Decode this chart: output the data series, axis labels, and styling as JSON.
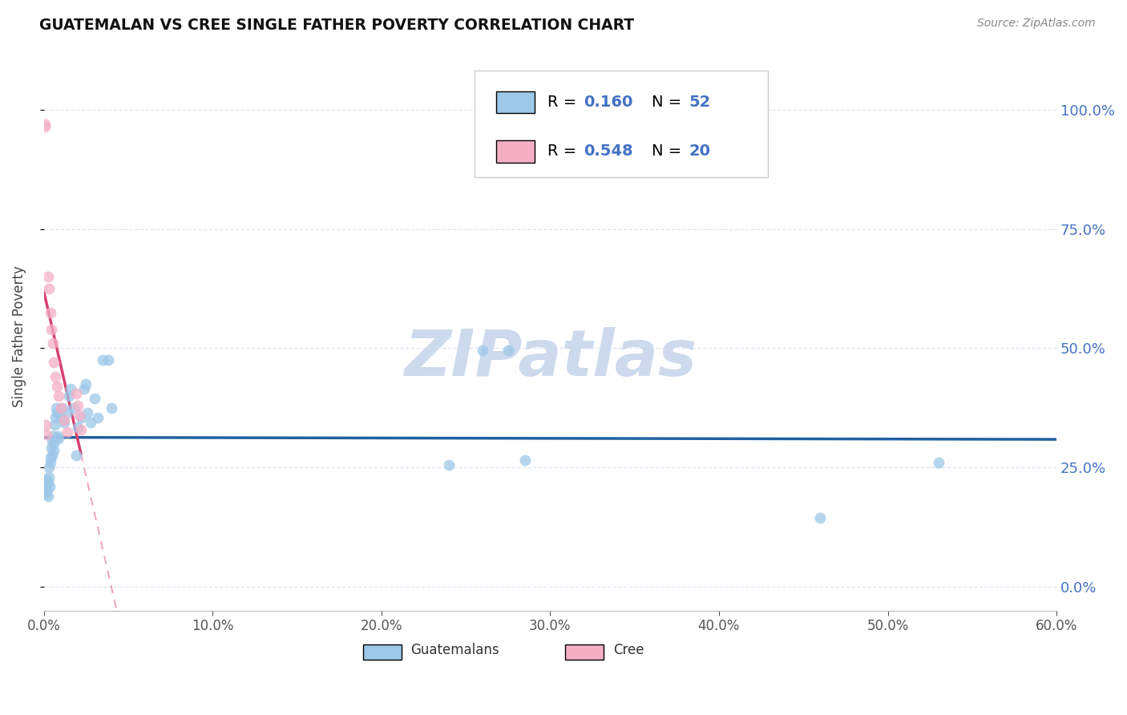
{
  "title": "GUATEMALAN VS CREE SINGLE FATHER POVERTY CORRELATION CHART",
  "source": "Source: ZipAtlas.com",
  "ylabel": "Single Father Poverty",
  "legend_label1": "Guatemalans",
  "legend_label2": "Cree",
  "r1": 0.16,
  "n1": 52,
  "r2": 0.548,
  "n2": 20,
  "blue_scatter": "#9dc8e8",
  "pink_scatter": "#f4afc5",
  "line_blue": "#2060a0",
  "line_pink": "#d84070",
  "text_blue": "#4472c4",
  "title_color": "#111111",
  "source_color": "#888888",
  "grid_color": "#dce5f0",
  "watermark_color": "#cdd9ed",
  "xlim": [
    0.0,
    60.0
  ],
  "ylim": [
    -5.0,
    110.0
  ],
  "xticks": [
    0.0,
    10.0,
    20.0,
    30.0,
    40.0,
    50.0,
    60.0
  ],
  "yticks": [
    0.0,
    25.0,
    50.0,
    75.0,
    100.0
  ],
  "guatemalan_x": [
    0.05,
    0.08,
    0.1,
    0.12,
    0.15,
    0.18,
    0.2,
    0.22,
    0.25,
    0.28,
    0.3,
    0.32,
    0.35,
    0.38,
    0.4,
    0.45,
    0.48,
    0.5,
    0.55,
    0.58,
    0.6,
    0.65,
    0.7,
    0.75,
    0.8,
    0.85,
    0.9,
    1.0,
    1.1,
    1.2,
    1.4,
    1.5,
    1.6,
    1.8,
    1.9,
    2.0,
    2.2,
    2.4,
    2.5,
    2.6,
    2.8,
    3.0,
    3.2,
    3.5,
    3.8,
    4.0,
    24.0,
    26.0,
    27.5,
    28.5,
    46.0,
    53.0
  ],
  "guatemalan_y": [
    20.0,
    22.0,
    19.5,
    21.0,
    20.0,
    21.5,
    22.5,
    20.5,
    19.0,
    22.0,
    25.0,
    23.0,
    21.0,
    27.0,
    26.0,
    29.0,
    27.5,
    30.5,
    31.5,
    30.0,
    28.5,
    34.0,
    35.5,
    37.5,
    36.5,
    31.5,
    31.0,
    35.5,
    37.5,
    34.5,
    36.5,
    40.0,
    41.5,
    37.5,
    27.5,
    33.5,
    35.5,
    41.5,
    42.5,
    36.5,
    34.5,
    39.5,
    35.5,
    47.5,
    47.5,
    37.5,
    25.5,
    49.5,
    49.5,
    26.5,
    14.5,
    26.0
  ],
  "cree_x": [
    0.05,
    0.08,
    0.12,
    0.18,
    0.25,
    0.3,
    0.38,
    0.45,
    0.55,
    0.6,
    0.7,
    0.8,
    0.9,
    1.0,
    1.2,
    1.4,
    1.9,
    2.0,
    2.1,
    2.2
  ],
  "cree_y": [
    96.5,
    97.0,
    34.0,
    32.0,
    65.0,
    62.5,
    57.5,
    54.0,
    51.0,
    47.0,
    44.0,
    42.0,
    40.0,
    37.5,
    35.0,
    32.5,
    40.5,
    38.0,
    36.0,
    33.0
  ]
}
